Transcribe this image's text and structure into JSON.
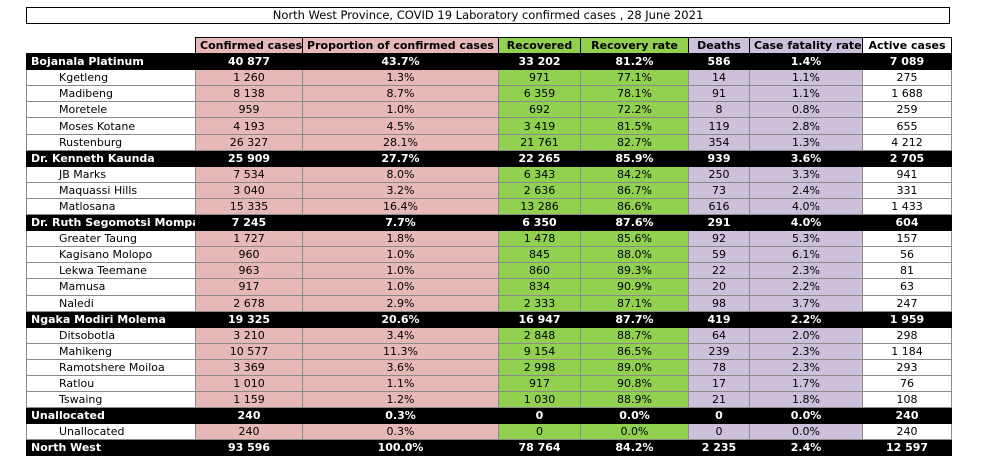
{
  "title": "North West Province, COVID 19 Laboratory confirmed cases , 28 June 2021",
  "headers": [
    "",
    "Confirmed cases",
    "Proportion of confirmed cases",
    "Recovered",
    "Recovery rate",
    "Deaths",
    "Case fatality rate",
    "Active cases"
  ],
  "rows": [
    {
      "type": "dist",
      "cells": [
        "Bojanala Platinum",
        "40 877",
        "43.7%",
        "33 202",
        "81.2%",
        "586",
        "1.4%",
        "7 089"
      ]
    },
    {
      "type": "sub",
      "cells": [
        "Kgetleng",
        "1 260",
        "1.3%",
        "971",
        "77.1%",
        "14",
        "1.1%",
        "275"
      ]
    },
    {
      "type": "sub",
      "cells": [
        "Madibeng",
        "8 138",
        "8.7%",
        "6 359",
        "78.1%",
        "91",
        "1.1%",
        "1 688"
      ]
    },
    {
      "type": "sub",
      "cells": [
        "Moretele",
        "959",
        "1.0%",
        "692",
        "72.2%",
        "8",
        "0.8%",
        "259"
      ]
    },
    {
      "type": "sub",
      "cells": [
        "Moses Kotane",
        "4 193",
        "4.5%",
        "3 419",
        "81.5%",
        "119",
        "2.8%",
        "655"
      ]
    },
    {
      "type": "sub",
      "cells": [
        "Rustenburg",
        "26 327",
        "28.1%",
        "21 761",
        "82.7%",
        "354",
        "1.3%",
        "4 212"
      ]
    },
    {
      "type": "dist",
      "cells": [
        "Dr. Kenneth Kaunda",
        "25 909",
        "27.7%",
        "22 265",
        "85.9%",
        "939",
        "3.6%",
        "2 705"
      ]
    },
    {
      "type": "sub",
      "cells": [
        "JB Marks",
        "7 534",
        "8.0%",
        "6 343",
        "84.2%",
        "250",
        "3.3%",
        "941"
      ]
    },
    {
      "type": "sub",
      "cells": [
        "Maquassi Hills",
        "3 040",
        "3.2%",
        "2 636",
        "86.7%",
        "73",
        "2.4%",
        "331"
      ]
    },
    {
      "type": "sub",
      "cells": [
        "Matlosana",
        "15 335",
        "16.4%",
        "13 286",
        "86.6%",
        "616",
        "4.0%",
        "1 433"
      ]
    },
    {
      "type": "dist",
      "cells": [
        "Dr. Ruth Segomotsi Mompa",
        "7 245",
        "7.7%",
        "6 350",
        "87.6%",
        "291",
        "4.0%",
        "604"
      ]
    },
    {
      "type": "sub",
      "cells": [
        "Greater Taung",
        "1 727",
        "1.8%",
        "1 478",
        "85.6%",
        "92",
        "5.3%",
        "157"
      ]
    },
    {
      "type": "sub",
      "cells": [
        "Kagisano Molopo",
        "960",
        "1.0%",
        "845",
        "88.0%",
        "59",
        "6.1%",
        "56"
      ]
    },
    {
      "type": "sub",
      "cells": [
        "Lekwa Teemane",
        "963",
        "1.0%",
        "860",
        "89.3%",
        "22",
        "2.3%",
        "81"
      ]
    },
    {
      "type": "sub",
      "cells": [
        "Mamusa",
        "917",
        "1.0%",
        "834",
        "90.9%",
        "20",
        "2.2%",
        "63"
      ]
    },
    {
      "type": "sub",
      "cells": [
        "Naledi",
        "2 678",
        "2.9%",
        "2 333",
        "87.1%",
        "98",
        "3.7%",
        "247"
      ]
    },
    {
      "type": "dist",
      "cells": [
        "Ngaka Modiri Molema",
        "19 325",
        "20.6%",
        "16 947",
        "87.7%",
        "419",
        "2.2%",
        "1 959"
      ]
    },
    {
      "type": "sub",
      "cells": [
        "Ditsobotla",
        "3 210",
        "3.4%",
        "2 848",
        "88.7%",
        "64",
        "2.0%",
        "298"
      ]
    },
    {
      "type": "sub",
      "cells": [
        "Mahikeng",
        "10 577",
        "11.3%",
        "9 154",
        "86.5%",
        "239",
        "2.3%",
        "1 184"
      ]
    },
    {
      "type": "sub",
      "cells": [
        "Ramotshere Moiloa",
        "3 369",
        "3.6%",
        "2 998",
        "89.0%",
        "78",
        "2.3%",
        "293"
      ]
    },
    {
      "type": "sub",
      "cells": [
        "Ratlou",
        "1 010",
        "1.1%",
        "917",
        "90.8%",
        "17",
        "1.7%",
        "76"
      ]
    },
    {
      "type": "sub",
      "cells": [
        "Tswaing",
        "1 159",
        "1.2%",
        "1 030",
        "88.9%",
        "21",
        "1.8%",
        "108"
      ]
    },
    {
      "type": "dist",
      "cells": [
        "Unallocated",
        "240",
        "0.3%",
        "0",
        "0.0%",
        "0",
        "0.0%",
        "240"
      ]
    },
    {
      "type": "sub",
      "cells": [
        "Unallocated",
        "240",
        "0.3%",
        "0",
        "0.0%",
        "0",
        "0.0%",
        "240"
      ]
    },
    {
      "type": "dist",
      "cells": [
        "North West",
        "93 596",
        "100.0%",
        "78 764",
        "84.2%",
        "2 235",
        "2.4%",
        "12 597"
      ]
    }
  ]
}
